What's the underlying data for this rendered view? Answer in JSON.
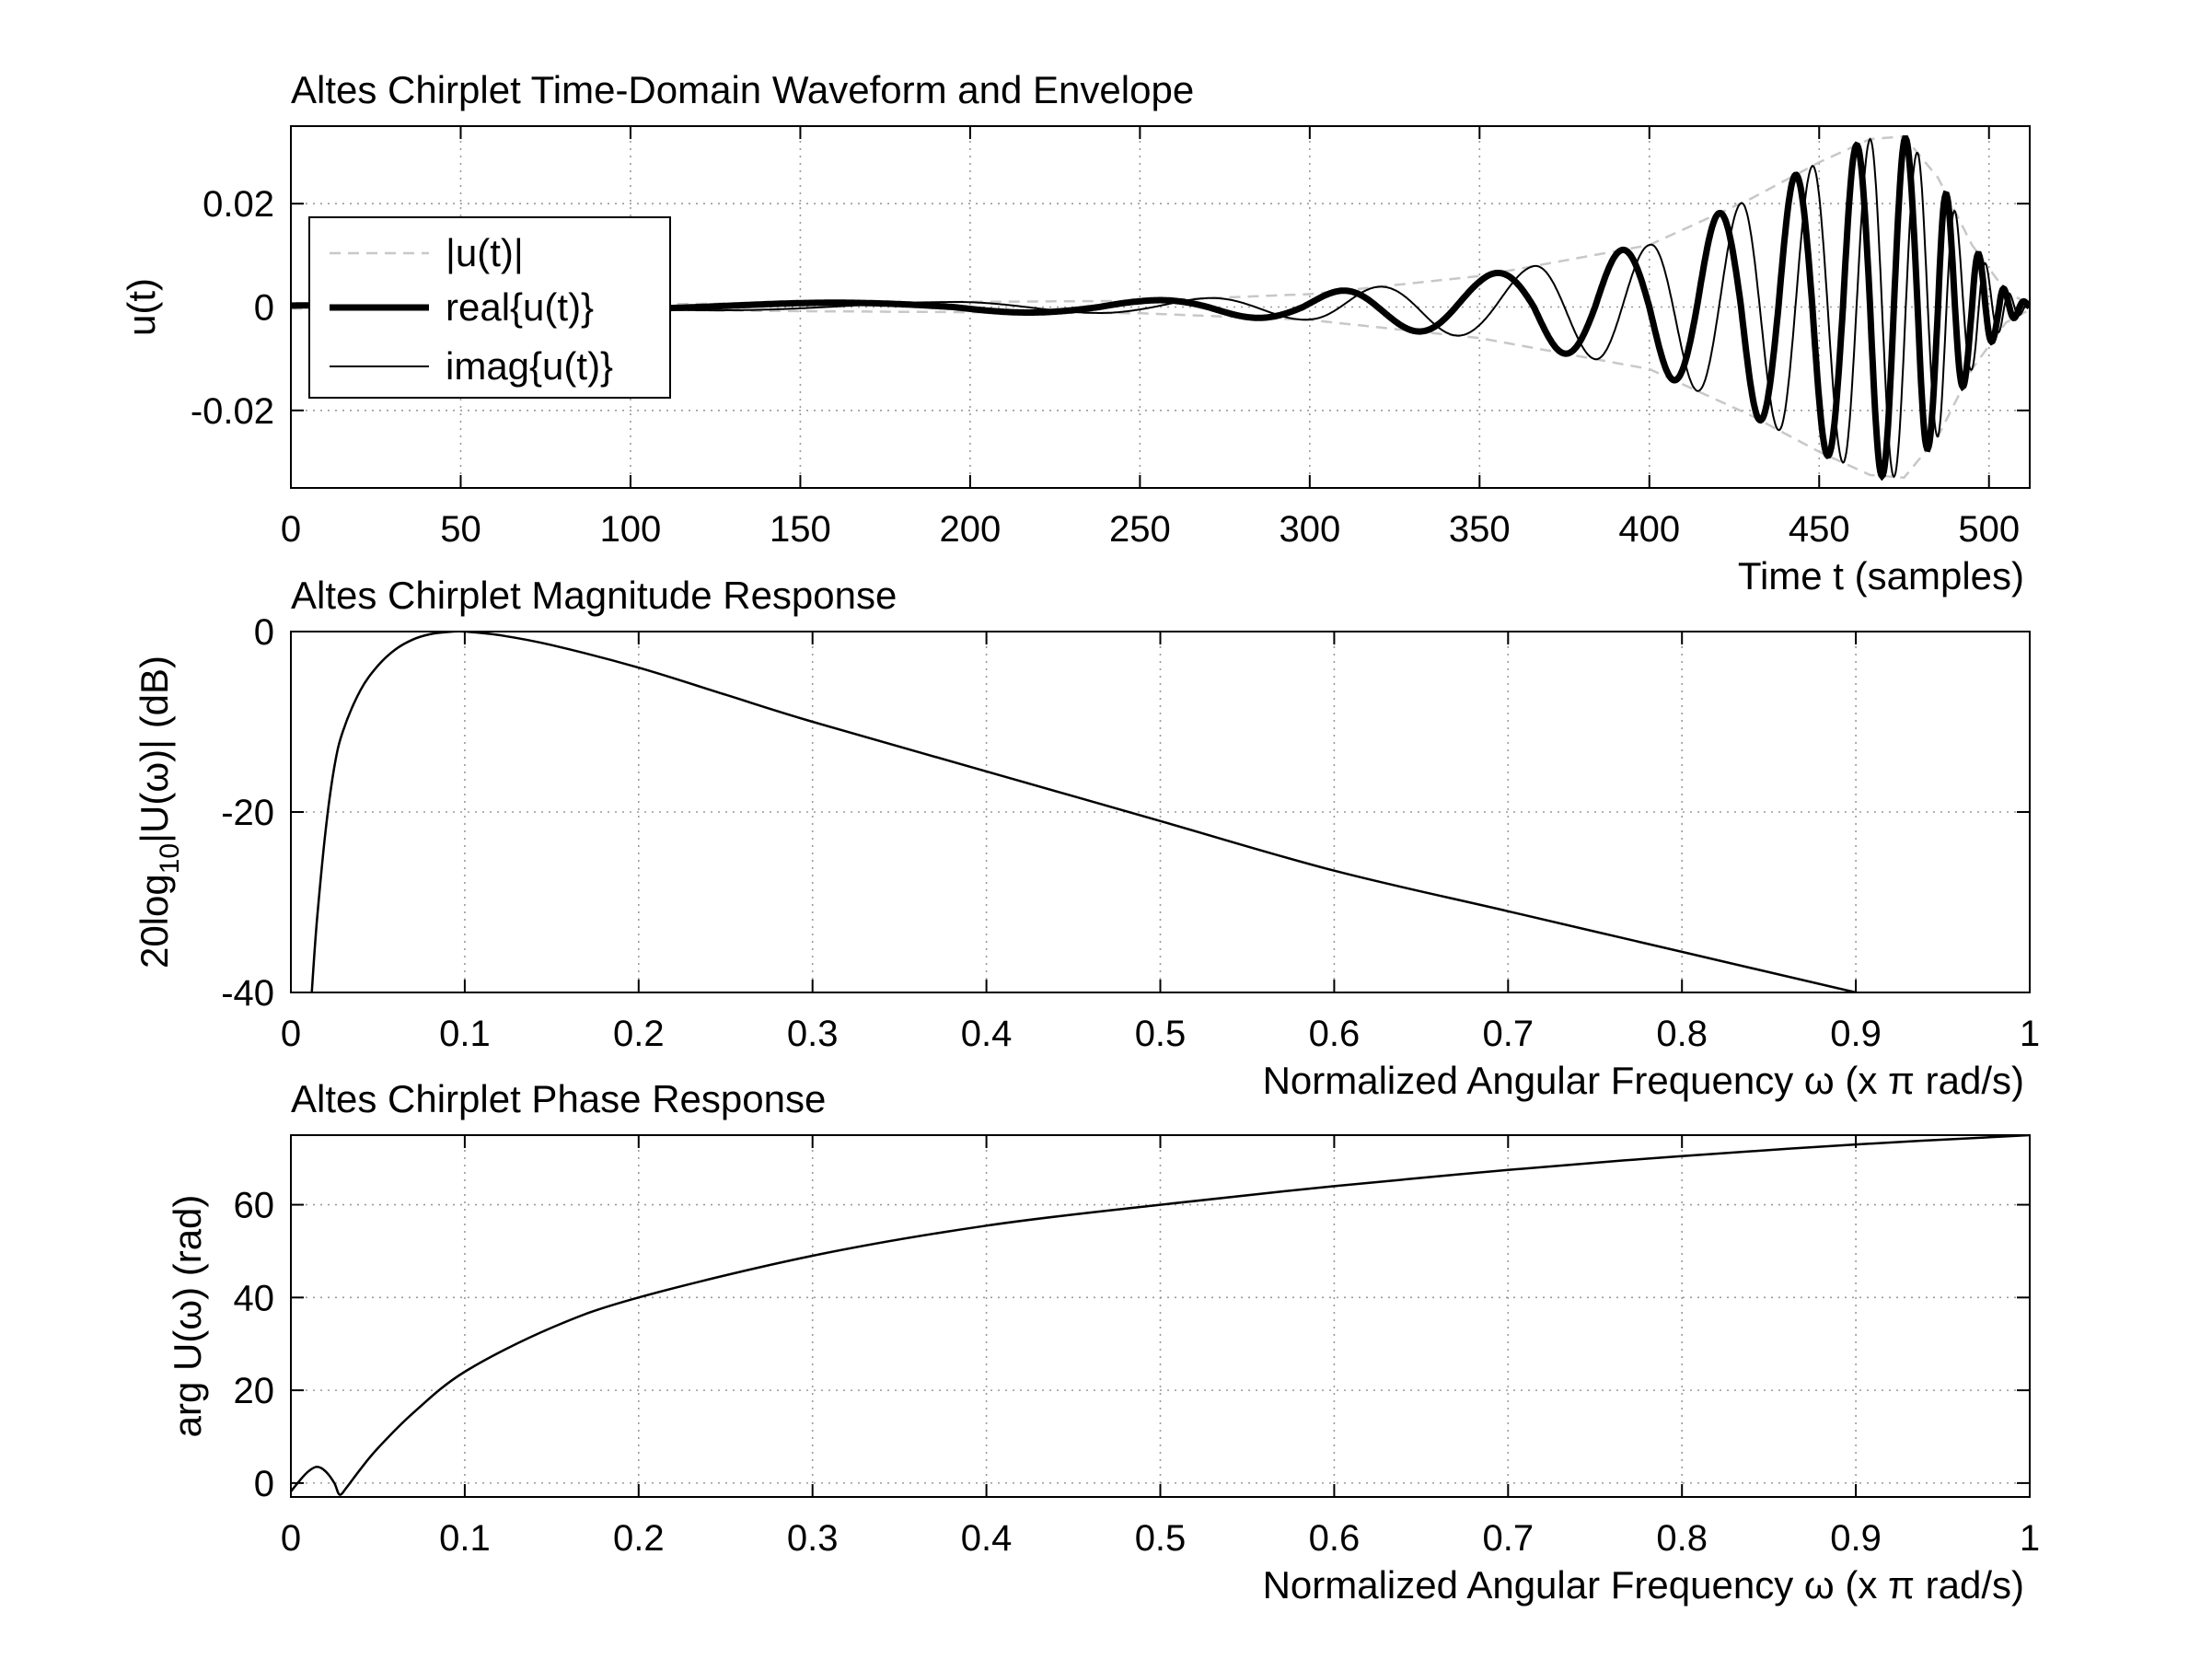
{
  "chart_data": [
    {
      "type": "line",
      "title": "Altes Chirplet Time-Domain Waveform and Envelope",
      "xlabel": "Time t (samples)",
      "ylabel": "u(t)",
      "xlim": [
        0,
        512
      ],
      "ylim": [
        -0.035,
        0.035
      ],
      "xticks": [
        0,
        50,
        100,
        150,
        200,
        250,
        300,
        350,
        400,
        450,
        500
      ],
      "yticks": [
        -0.02,
        0,
        0.02
      ],
      "ytick_labels": [
        "-0.02",
        "0",
        "0.02"
      ],
      "grid": true,
      "legend_position": "upper-left",
      "series": [
        {
          "name": "|u(t)|",
          "style": "dashed",
          "color": "#c8c8c8"
        },
        {
          "name": "real{u(t)}",
          "style": "thick",
          "color": "#000000"
        },
        {
          "name": "imag{u(t)}",
          "style": "thin",
          "color": "#000000"
        }
      ],
      "envelope_points": [
        [
          0,
          0.0003
        ],
        [
          100,
          0.0005
        ],
        [
          150,
          0.0008
        ],
        [
          200,
          0.001
        ],
        [
          250,
          0.0012
        ],
        [
          300,
          0.0025
        ],
        [
          350,
          0.006
        ],
        [
          400,
          0.012
        ],
        [
          430,
          0.021
        ],
        [
          450,
          0.028
        ],
        [
          465,
          0.0325
        ],
        [
          475,
          0.033
        ],
        [
          485,
          0.025
        ],
        [
          495,
          0.012
        ],
        [
          505,
          0.003
        ],
        [
          512,
          0.0005
        ]
      ],
      "zero_crossings": [
        120,
        195,
        238,
        270,
        298,
        320,
        343,
        366,
        384,
        400,
        414,
        427,
        438,
        448,
        457,
        465,
        472,
        479,
        485,
        490,
        495,
        499,
        503,
        506,
        509,
        512
      ]
    },
    {
      "type": "line",
      "title": "Altes Chirplet Magnitude Response",
      "xlabel": "Normalized Angular Frequency  ω (x π rad/s)",
      "ylabel_parts": [
        "20log",
        "10",
        "|U(ω)| (dB)"
      ],
      "xlim": [
        0,
        1
      ],
      "ylim": [
        -40,
        0
      ],
      "xticks": [
        0,
        0.1,
        0.2,
        0.3,
        0.4,
        0.5,
        0.6,
        0.7,
        0.8,
        0.9,
        1
      ],
      "xtick_labels": [
        "0",
        "0.1",
        "0.2",
        "0.3",
        "0.4",
        "0.5",
        "0.6",
        "0.7",
        "0.8",
        "0.9",
        "1"
      ],
      "yticks": [
        -40,
        -20,
        0
      ],
      "ytick_labels": [
        "-40",
        "-20",
        "0"
      ],
      "grid": true,
      "x": [
        0.012,
        0.015,
        0.02,
        0.025,
        0.03,
        0.04,
        0.05,
        0.06,
        0.07,
        0.08,
        0.09,
        0.1,
        0.12,
        0.15,
        0.2,
        0.25,
        0.3,
        0.4,
        0.5,
        0.6,
        0.7,
        0.8,
        0.9
      ],
      "y": [
        -40,
        -32,
        -22,
        -15,
        -11,
        -6.5,
        -3.8,
        -2,
        -0.9,
        -0.3,
        -0.05,
        0,
        -0.4,
        -1.5,
        -4,
        -7,
        -10,
        -15.5,
        -21,
        -26.5,
        -31,
        -35.5,
        -40
      ]
    },
    {
      "type": "line",
      "title": "Altes Chirplet Phase Response",
      "xlabel": "Normalized Angular Frequency  ω (x π rad/s)",
      "ylabel": "arg U(ω) (rad)",
      "xlim": [
        0,
        1
      ],
      "ylim": [
        -3,
        75
      ],
      "xticks": [
        0,
        0.1,
        0.2,
        0.3,
        0.4,
        0.5,
        0.6,
        0.7,
        0.8,
        0.9,
        1
      ],
      "xtick_labels": [
        "0",
        "0.1",
        "0.2",
        "0.3",
        "0.4",
        "0.5",
        "0.6",
        "0.7",
        "0.8",
        "0.9",
        "1"
      ],
      "yticks": [
        0,
        20,
        40,
        60
      ],
      "ytick_labels": [
        "0",
        "20",
        "40",
        "60"
      ],
      "grid": true,
      "x": [
        0,
        0.005,
        0.01,
        0.015,
        0.02,
        0.025,
        0.028,
        0.032,
        0.04,
        0.05,
        0.07,
        0.1,
        0.15,
        0.2,
        0.3,
        0.4,
        0.5,
        0.6,
        0.7,
        0.8,
        0.9,
        1.0
      ],
      "y": [
        -1.8,
        0.5,
        2.5,
        3.5,
        2.5,
        0,
        -2.5,
        -1,
        3,
        7.5,
        15,
        24,
        33.5,
        40,
        49,
        55.5,
        60,
        64,
        67.5,
        70.5,
        73,
        75
      ]
    }
  ]
}
